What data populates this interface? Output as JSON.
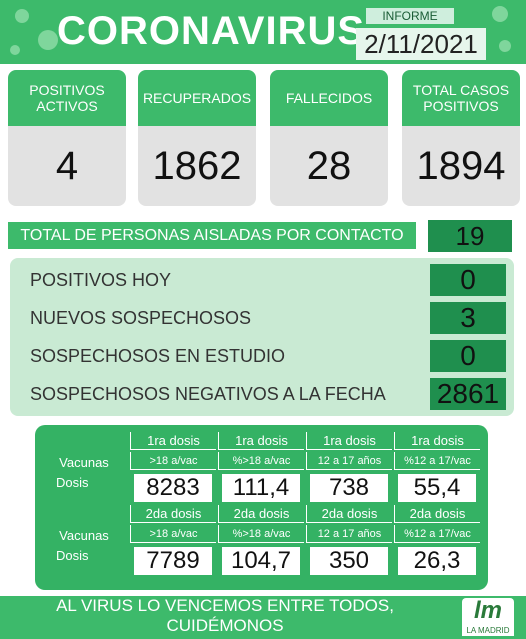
{
  "header": {
    "title": "CORONAVIRUS",
    "label": "INFORME",
    "date": "2/11/2021"
  },
  "cards": [
    {
      "label": "POSITIVOS ACTIVOS",
      "value": "4"
    },
    {
      "label": "RECUPERADOS",
      "value": "1862"
    },
    {
      "label": "FALLECIDOS",
      "value": "28"
    },
    {
      "label": "TOTAL CASOS POSITIVOS",
      "value": "1894"
    }
  ],
  "isolated": {
    "label": "TOTAL DE PERSONAS AISLADAS POR CONTACTO",
    "value": "19"
  },
  "status_rows": [
    {
      "label": "POSITIVOS HOY",
      "value": "0"
    },
    {
      "label": "NUEVOS SOSPECHOSOS",
      "value": "3"
    },
    {
      "label": "SOSPECHOSOS EN ESTUDIO",
      "value": "0"
    },
    {
      "label": "SOSPECHOSOS NEGATIVOS A LA FECHA",
      "value": "2861"
    }
  ],
  "vaccination": {
    "groups": [
      {
        "dose_labels": [
          "1ra dosis",
          "1ra dosis",
          "1ra dosis",
          "1ra dosis"
        ],
        "row_labels": [
          "Vacunas",
          "Dosis"
        ],
        "columns": [
          ">18 a/vac",
          "%>18 a/vac",
          "12 a 17 años",
          "%12 a 17/vac"
        ],
        "values": [
          "8283",
          "111,4",
          "738",
          "55,4"
        ]
      },
      {
        "dose_labels": [
          "2da dosis",
          "2da dosis",
          "2da dosis",
          "2da dosis"
        ],
        "row_labels": [
          "Vacunas",
          "Dosis"
        ],
        "columns": [
          ">18 a/vac",
          "%>18 a/vac",
          "12 a 17 años",
          "%12 a 17/vac"
        ],
        "values": [
          "7789",
          "104,7",
          "350",
          "26,3"
        ]
      }
    ]
  },
  "footer": {
    "slogan": "AL VIRUS LO VENCEMOS ENTRE TODOS, CUIDÉMONOS",
    "logo_mark": "lm",
    "logo_text": "LA MADRID"
  }
}
